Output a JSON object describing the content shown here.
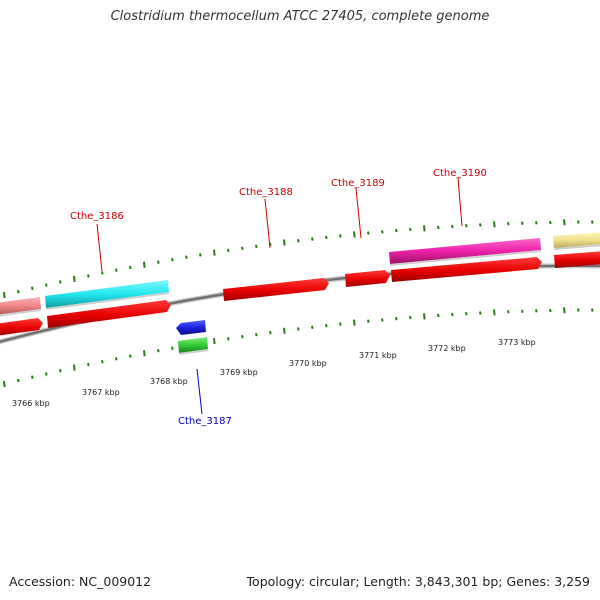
{
  "title": "Clostridium thermocellum ATCC 27405, complete genome",
  "footer": {
    "accession_label": "Accession:",
    "accession": "NC_009012",
    "topology_label": "Topology:",
    "topology": "circular",
    "length_label": "Length:",
    "length": "3,843,301 bp",
    "genes_label": "Genes:",
    "genes": "3,259"
  },
  "scale": {
    "unit": "kbp",
    "labels": [
      "3766 kbp",
      "3767 kbp",
      "3768 kbp",
      "3769 kbp",
      "3770 kbp",
      "3771 kbp",
      "3772 kbp",
      "3773 kbp"
    ]
  },
  "gene_labels": [
    {
      "id": "cthe3186",
      "text": "Cthe_3186",
      "color": "#cc0000"
    },
    {
      "id": "cthe3187",
      "text": "Cthe_3187",
      "color": "#0000cc"
    },
    {
      "id": "cthe3188",
      "text": "Cthe_3188",
      "color": "#cc0000"
    },
    {
      "id": "cthe3189",
      "text": "Cthe_3189",
      "color": "#cc0000"
    },
    {
      "id": "cthe3190",
      "text": "Cthe_3190",
      "color": "#cc0000"
    }
  ],
  "colors": {
    "cds": "#ee0000",
    "cyan_feature": "#22e8ee",
    "magenta_feature": "#ee22aa",
    "salmon_feature": "#ee8888",
    "yellow_feature": "#f0e08a",
    "blue_feature": "#1a22dd",
    "green_feature": "#33cc33",
    "backbone": "#888888",
    "tick": "#2a7a1a"
  }
}
